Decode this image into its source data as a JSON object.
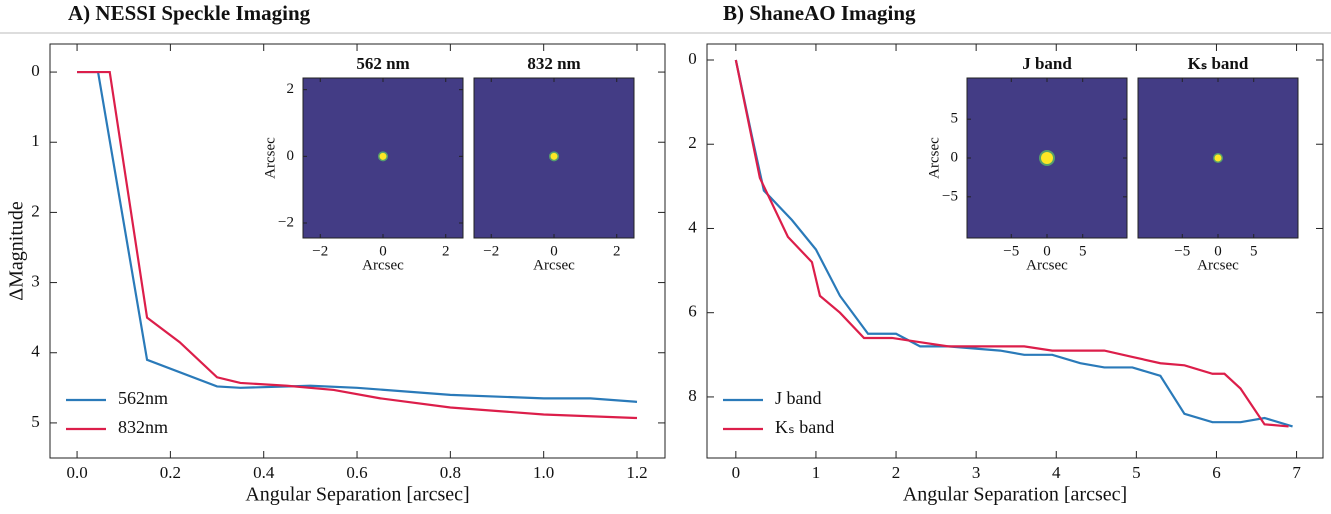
{
  "chart_data": [
    {
      "type": "line",
      "title": "A) NESSI Speckle Imaging",
      "xlabel": "Angular Separation [arcsec]",
      "ylabel": "ΔMagnitude",
      "xlim": [
        -0.058,
        1.26
      ],
      "ylim": [
        5.5,
        -0.4
      ],
      "xticks": [
        {
          "value": 0,
          "label": "0.0"
        },
        0.2,
        0.4,
        0.6,
        0.8,
        {
          "value": 1,
          "label": "1.0"
        },
        1.2
      ],
      "yticks": [
        0,
        1,
        2,
        3,
        4,
        5
      ],
      "legend": "lower left",
      "series": [
        {
          "name": "562nm",
          "color": "#2a7ab9",
          "x": [
            0,
            0.045,
            0.15,
            0.3,
            0.35,
            0.5,
            0.6,
            0.8,
            1.0,
            1.1,
            1.2
          ],
          "values": [
            0,
            0,
            4.1,
            4.48,
            4.5,
            4.47,
            4.5,
            4.6,
            4.65,
            4.65,
            4.7
          ]
        },
        {
          "name": "832nm",
          "color": "#dc1e4a",
          "x": [
            0,
            0.07,
            0.15,
            0.22,
            0.3,
            0.35,
            0.45,
            0.55,
            0.65,
            0.8,
            0.9,
            1.0,
            1.2
          ],
          "values": [
            0,
            0,
            3.5,
            3.85,
            4.35,
            4.43,
            4.47,
            4.53,
            4.65,
            4.78,
            4.83,
            4.88,
            4.93
          ]
        }
      ],
      "insets": [
        {
          "title": "562 nm",
          "xlabel": "Arcsec",
          "ylabel": "Arcsec",
          "xlim": [
            -2.55,
            2.55
          ],
          "ylim": [
            -2.45,
            2.35
          ],
          "xticks": [
            {
              "value": -2,
              "label": "−2"
            },
            0,
            2
          ],
          "yticks": [
            {
              "value": -2,
              "label": "−2"
            },
            0,
            2
          ]
        },
        {
          "title": "832 nm",
          "xlabel": "Arcsec",
          "xlim": [
            -2.55,
            2.55
          ],
          "ylim": [
            -2.45,
            2.35
          ],
          "xticks": [
            {
              "value": -2,
              "label": "−2"
            },
            0,
            2
          ]
        }
      ]
    },
    {
      "type": "line",
      "title": "B) ShaneAO Imaging",
      "xlabel": "Angular Separation [arcsec]",
      "xlim": [
        -0.36,
        7.33
      ],
      "ylim": [
        9.45,
        -0.38
      ],
      "xticks": [
        0,
        1,
        2,
        3,
        4,
        5,
        6,
        7
      ],
      "yticks": [
        0,
        2,
        4,
        6,
        8
      ],
      "legend": "lower left",
      "series": [
        {
          "name": "J band",
          "color": "#2a7ab9",
          "x": [
            0,
            0.2,
            0.35,
            0.7,
            1.0,
            1.3,
            1.65,
            2.0,
            2.3,
            2.65,
            3.3,
            3.6,
            3.95,
            4.3,
            4.6,
            4.95,
            5.3,
            5.6,
            5.95,
            6.3,
            6.6,
            6.95
          ],
          "values": [
            0,
            1.8,
            3.1,
            3.8,
            4.5,
            5.6,
            6.5,
            6.5,
            6.8,
            6.8,
            6.9,
            7.0,
            7.0,
            7.2,
            7.3,
            7.3,
            7.5,
            8.4,
            8.6,
            8.6,
            8.5,
            8.7
          ]
        },
        {
          "name": "Kₛ band",
          "color": "#dc1e4a",
          "x": [
            0,
            0.3,
            0.65,
            0.95,
            1.05,
            1.3,
            1.6,
            1.95,
            2.3,
            2.65,
            3.3,
            3.6,
            3.95,
            4.3,
            4.6,
            4.95,
            5.3,
            5.6,
            5.95,
            6.1,
            6.3,
            6.6,
            6.9
          ],
          "values": [
            0,
            2.8,
            4.2,
            4.8,
            5.6,
            6.0,
            6.6,
            6.6,
            6.7,
            6.8,
            6.8,
            6.8,
            6.9,
            6.9,
            6.9,
            7.05,
            7.2,
            7.25,
            7.45,
            7.45,
            7.8,
            8.65,
            8.7
          ]
        }
      ],
      "insets": [
        {
          "title": "J band",
          "xlabel": "Arcsec",
          "ylabel": "Arcsec",
          "xlim": [
            -11.2,
            11.2
          ],
          "ylim": [
            -10.3,
            10.3
          ],
          "xticks": [
            {
              "value": -5,
              "label": "−5"
            },
            0,
            5
          ],
          "yticks": [
            {
              "value": -5,
              "label": "−5"
            },
            0,
            5
          ]
        },
        {
          "title": "Kₛ band",
          "xlabel": "Arcsec",
          "xlim": [
            -11.2,
            11.2
          ],
          "ylim": [
            -10.3,
            10.3
          ],
          "xticks": [
            {
              "value": -5,
              "label": "−5"
            },
            0,
            5
          ]
        }
      ]
    }
  ]
}
